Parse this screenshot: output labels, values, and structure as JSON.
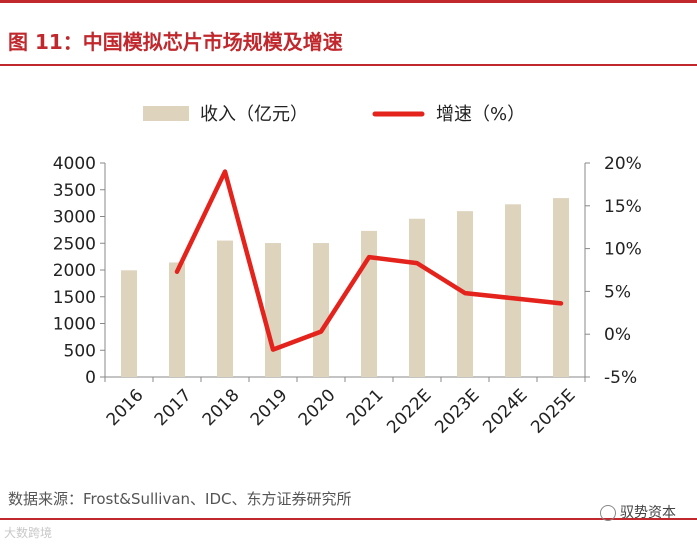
{
  "figure": {
    "title": "图 11：中国模拟芯片市场规模及增速",
    "source": "数据来源：Frost&Sullivan、IDC、东方证券研究所",
    "watermark_left": "大数跨境",
    "watermark_right": "驭势资本"
  },
  "colors": {
    "accent": "#c0282d",
    "bar": "#ded3bd",
    "line": "#e3231c",
    "text": "#222222",
    "axis": "#888888"
  },
  "chart_data": {
    "type": "bar",
    "categories": [
      "2016",
      "2017",
      "2018",
      "2019",
      "2020",
      "2021",
      "2022E",
      "2023E",
      "2024E",
      "2025E"
    ],
    "series": [
      {
        "name": "收入（亿元）",
        "type": "bar",
        "axis": "left",
        "values": [
          1994,
          2140,
          2550,
          2504,
          2504,
          2731,
          2958,
          3100,
          3228,
          3344
        ]
      },
      {
        "name": "增速（%）",
        "type": "line",
        "axis": "right",
        "values": [
          null,
          7.3,
          19.0,
          -1.8,
          0.3,
          9.0,
          8.3,
          4.8,
          4.2,
          3.6
        ]
      }
    ],
    "y_left": {
      "min": 0,
      "max": 4000,
      "ticks": [
        0,
        500,
        1000,
        1500,
        2000,
        2500,
        3000,
        3500,
        4000
      ],
      "tick_labels": [
        "0",
        "500",
        "1000",
        "1500",
        "2000",
        "2500",
        "3000",
        "3500",
        "4000"
      ]
    },
    "y_right": {
      "min": -5,
      "max": 20,
      "ticks": [
        -5,
        0,
        5,
        10,
        15,
        20
      ],
      "tick_labels": [
        "-5%",
        "0%",
        "5%",
        "10%",
        "15%",
        "20%"
      ]
    },
    "legend_position": "top-center",
    "grid": false
  }
}
